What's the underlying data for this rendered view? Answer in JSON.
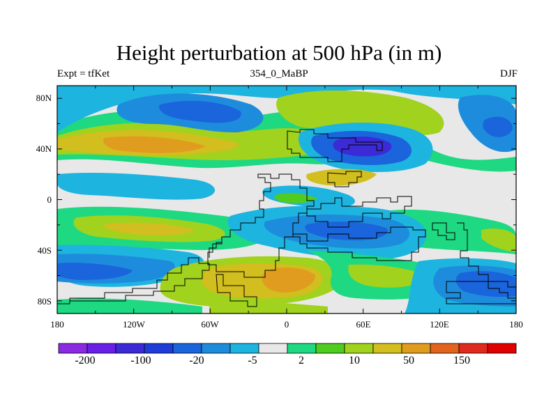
{
  "title": "Height perturbation at 500 hPa (in m)",
  "left_string": "Expt = tfKet",
  "center_string": "354_0_MaBP",
  "right_string": "DJF",
  "axes": {
    "lon_ticks": [
      "180",
      "120W",
      "60W",
      "0",
      "60E",
      "120E",
      "180"
    ],
    "lat_ticks": [
      "80N",
      "40N",
      "0",
      "40S",
      "80S"
    ]
  },
  "colorbar": {
    "colors": [
      "#8a2be2",
      "#6a1ee6",
      "#3c2ad6",
      "#1e3cd8",
      "#1a64dc",
      "#1e8cdc",
      "#1eb4e0",
      "#e8e8e8",
      "#1ed882",
      "#50cc1e",
      "#a0d21e",
      "#d2be1e",
      "#e09c1e",
      "#e0641e",
      "#e02a1e",
      "#e00000"
    ],
    "labels": [
      "-200",
      "-100",
      "-20",
      "-5",
      "2",
      "10",
      "50",
      "150"
    ]
  },
  "chart_data": {
    "type": "heatmap",
    "title": "Height perturbation at 500 hPa (in m)",
    "subtitle": "354_0_MaBP",
    "season": "DJF",
    "experiment": "tfKet",
    "x_range": [
      -180,
      180
    ],
    "y_range": [
      -90,
      90
    ],
    "contour_levels": [
      -200,
      -150,
      -100,
      -50,
      -20,
      -10,
      -5,
      -2,
      2,
      5,
      10,
      20,
      50,
      100,
      150,
      200
    ],
    "features": [
      {
        "lon": -120,
        "lat": 70,
        "type": "low",
        "level": "-20"
      },
      {
        "lon": -100,
        "lat": 42,
        "type": "high",
        "level": "50"
      },
      {
        "lon": 70,
        "lat": 40,
        "type": "low",
        "level": "-100"
      },
      {
        "lon": 160,
        "lat": 55,
        "type": "low",
        "level": "-20"
      },
      {
        "lon": 20,
        "lat": -65,
        "type": "high",
        "level": "50"
      },
      {
        "lon": -170,
        "lat": -60,
        "type": "low",
        "level": "-20"
      },
      {
        "lon": 80,
        "lat": -30,
        "type": "low",
        "level": "-20"
      },
      {
        "lon": -130,
        "lat": -38,
        "type": "high",
        "level": "10"
      },
      {
        "lon": 170,
        "lat": -60,
        "type": "low",
        "level": "-20"
      }
    ]
  }
}
